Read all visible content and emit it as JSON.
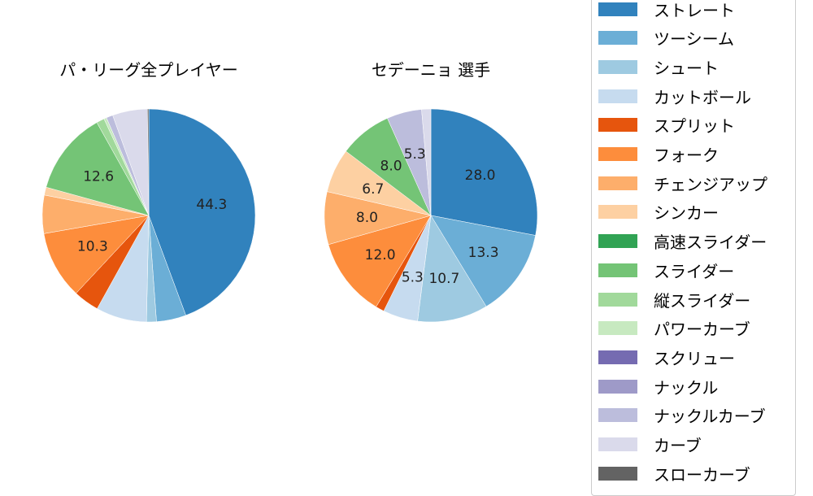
{
  "chart_data": [
    {
      "type": "pie",
      "title": "パ・リーグ全プレイヤー",
      "labels": [
        "ストレート",
        "ツーシーム",
        "シュート",
        "カットボール",
        "スプリット",
        "フォーク",
        "チェンジアップ",
        "シンカー",
        "高速スライダー",
        "スライダー",
        "縦スライダー",
        "パワーカーブ",
        "スクリュー",
        "ナックル",
        "ナックルカーブ",
        "カーブ",
        "スローカーブ"
      ],
      "values": [
        44.3,
        4.5,
        1.5,
        7.7,
        3.9,
        10.3,
        5.8,
        1.2,
        0.0,
        12.6,
        1.2,
        0.4,
        0.0,
        0.0,
        1.0,
        5.3,
        0.2
      ],
      "data_labels": {
        "ストレート": "44.3",
        "フォーク": "10.3",
        "スライダー": "12.6"
      }
    },
    {
      "type": "pie",
      "title": "セデーニョ  選手",
      "labels": [
        "ストレート",
        "ツーシーム",
        "シュート",
        "カットボール",
        "スプリット",
        "フォーク",
        "チェンジアップ",
        "シンカー",
        "高速スライダー",
        "スライダー",
        "縦スライダー",
        "パワーカーブ",
        "スクリュー",
        "ナックル",
        "ナックルカーブ",
        "カーブ",
        "スローカーブ"
      ],
      "values": [
        28.0,
        13.3,
        10.7,
        5.3,
        1.3,
        12.0,
        8.0,
        6.7,
        0.0,
        8.0,
        0.0,
        0.0,
        0.0,
        0.0,
        5.3,
        1.4,
        0.0
      ],
      "data_labels": {
        "ストレート": "28.0",
        "ツーシーム": "13.3",
        "シュート": "10.7",
        "カットボール": "5.3",
        "フォーク": "12.0",
        "チェンジアップ": "8.0",
        "シンカー": "6.7",
        "スライダー": "8.0",
        "ナックルカーブ": "5.3"
      }
    }
  ],
  "legend": {
    "items": [
      {
        "label": "ストレート",
        "color": "#3182bd"
      },
      {
        "label": "ツーシーム",
        "color": "#6baed6"
      },
      {
        "label": "シュート",
        "color": "#9ecae1"
      },
      {
        "label": "カットボール",
        "color": "#c6dbef"
      },
      {
        "label": "スプリット",
        "color": "#e6550d"
      },
      {
        "label": "フォーク",
        "color": "#fd8d3c"
      },
      {
        "label": "チェンジアップ",
        "color": "#fdae6b"
      },
      {
        "label": "シンカー",
        "color": "#fdd0a2"
      },
      {
        "label": "高速スライダー",
        "color": "#31a354"
      },
      {
        "label": "スライダー",
        "color": "#74c476"
      },
      {
        "label": "縦スライダー",
        "color": "#a1d99b"
      },
      {
        "label": "パワーカーブ",
        "color": "#c7e9c0"
      },
      {
        "label": "スクリュー",
        "color": "#756bb1"
      },
      {
        "label": "ナックル",
        "color": "#9e9ac8"
      },
      {
        "label": "ナックルカーブ",
        "color": "#bcbddc"
      },
      {
        "label": "カーブ",
        "color": "#dadaeb"
      },
      {
        "label": "スローカーブ",
        "color": "#636363"
      }
    ]
  }
}
